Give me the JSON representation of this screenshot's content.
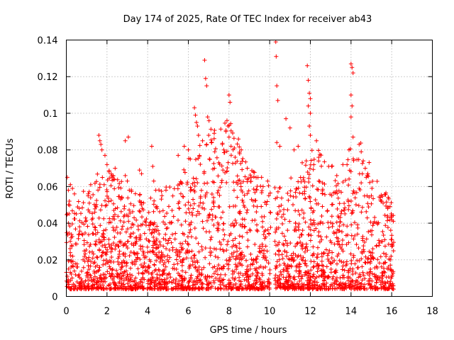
{
  "chart_data": {
    "type": "scatter",
    "title": "Day 174 of 2025, Rate Of TEC Index for receiver ab43",
    "xlabel": "GPS time / hours",
    "ylabel": "ROTI / TECUs",
    "xlim": [
      0,
      18
    ],
    "ylim": [
      0,
      0.14
    ],
    "xticks": [
      0,
      2,
      4,
      6,
      8,
      10,
      12,
      14,
      16,
      18
    ],
    "yticks": [
      0,
      0.02,
      0.04,
      0.06,
      0.08,
      0.1,
      0.12,
      0.14
    ],
    "xtick_labels": [
      "0",
      "2",
      "4",
      "6",
      "8",
      "10",
      "12",
      "14",
      "16",
      "18"
    ],
    "ytick_labels": [
      "0",
      "0.02",
      "0.04",
      "0.06",
      "0.08",
      "0.1",
      "0.12",
      "0.14"
    ],
    "grid": true,
    "marker": "plus",
    "color": "#ff0000",
    "data_gaps_hours": [
      [
        10.05,
        10.25
      ]
    ],
    "x_data_range": [
      0,
      16.1
    ],
    "series": [
      {
        "points": [
          [
            0.05,
            0.065
          ],
          [
            0.1,
            0.058
          ],
          [
            0.15,
            0.052
          ],
          [
            0.2,
            0.061
          ],
          [
            0.3,
            0.059
          ],
          [
            0.05,
            0.045
          ],
          [
            0.1,
            0.04
          ],
          [
            0.4,
            0.056
          ],
          [
            1.2,
            0.061
          ],
          [
            1.6,
            0.088
          ],
          [
            1.65,
            0.085
          ],
          [
            1.7,
            0.083
          ],
          [
            1.75,
            0.08
          ],
          [
            1.9,
            0.077
          ],
          [
            2.0,
            0.072
          ],
          [
            2.1,
            0.068
          ],
          [
            2.4,
            0.07
          ],
          [
            2.3,
            0.066
          ],
          [
            2.9,
            0.085
          ],
          [
            3.05,
            0.087
          ],
          [
            2.9,
            0.066
          ],
          [
            3.0,
            0.063
          ],
          [
            3.6,
            0.069
          ],
          [
            3.7,
            0.067
          ],
          [
            4.2,
            0.082
          ],
          [
            4.25,
            0.071
          ],
          [
            4.3,
            0.063
          ],
          [
            4.4,
            0.058
          ],
          [
            4.7,
            0.055
          ],
          [
            4.9,
            0.058
          ],
          [
            5.2,
            0.047
          ],
          [
            5.5,
            0.077
          ],
          [
            5.8,
            0.082
          ],
          [
            6.0,
            0.08
          ],
          [
            6.1,
            0.075
          ],
          [
            6.3,
            0.103
          ],
          [
            6.35,
            0.099
          ],
          [
            6.4,
            0.095
          ],
          [
            6.45,
            0.093
          ],
          [
            6.5,
            0.088
          ],
          [
            6.7,
            0.085
          ],
          [
            6.8,
            0.129
          ],
          [
            6.85,
            0.119
          ],
          [
            6.9,
            0.115
          ],
          [
            6.95,
            0.098
          ],
          [
            7.0,
            0.088
          ],
          [
            6.9,
            0.083
          ],
          [
            7.3,
            0.079
          ],
          [
            7.5,
            0.073
          ],
          [
            7.7,
            0.069
          ],
          [
            7.9,
            0.096
          ],
          [
            7.95,
            0.093
          ],
          [
            8.0,
            0.11
          ],
          [
            8.05,
            0.106
          ],
          [
            7.85,
            0.09
          ],
          [
            8.0,
            0.087
          ],
          [
            8.1,
            0.082
          ],
          [
            8.3,
            0.076
          ],
          [
            8.6,
            0.08
          ],
          [
            8.9,
            0.07
          ],
          [
            9.2,
            0.068
          ],
          [
            9.6,
            0.065
          ],
          [
            9.9,
            0.063
          ],
          [
            10.3,
            0.139
          ],
          [
            10.32,
            0.131
          ],
          [
            10.35,
            0.115
          ],
          [
            10.4,
            0.107
          ],
          [
            10.35,
            0.084
          ],
          [
            10.5,
            0.082
          ],
          [
            10.8,
            0.097
          ],
          [
            11.0,
            0.092
          ],
          [
            11.2,
            0.08
          ],
          [
            11.4,
            0.082
          ],
          [
            11.6,
            0.073
          ],
          [
            11.85,
            0.126
          ],
          [
            11.9,
            0.118
          ],
          [
            11.95,
            0.111
          ],
          [
            12.0,
            0.108
          ],
          [
            11.9,
            0.104
          ],
          [
            12.0,
            0.1
          ],
          [
            11.95,
            0.093
          ],
          [
            12.0,
            0.088
          ],
          [
            12.3,
            0.085
          ],
          [
            11.8,
            0.074
          ],
          [
            12.6,
            0.062
          ],
          [
            12.9,
            0.071
          ],
          [
            13.3,
            0.066
          ],
          [
            13.6,
            0.072
          ],
          [
            13.9,
            0.08
          ],
          [
            14.0,
            0.127
          ],
          [
            14.05,
            0.125
          ],
          [
            14.1,
            0.122
          ],
          [
            14.0,
            0.11
          ],
          [
            14.05,
            0.104
          ],
          [
            14.0,
            0.098
          ],
          [
            14.1,
            0.087
          ],
          [
            14.4,
            0.083
          ],
          [
            14.5,
            0.079
          ],
          [
            14.6,
            0.074
          ],
          [
            14.7,
            0.07
          ],
          [
            14.8,
            0.066
          ],
          [
            14.5,
            0.062
          ],
          [
            15.0,
            0.055
          ],
          [
            15.5,
            0.052
          ],
          [
            15.8,
            0.048
          ],
          [
            16.0,
            0.044
          ]
        ]
      }
    ]
  }
}
